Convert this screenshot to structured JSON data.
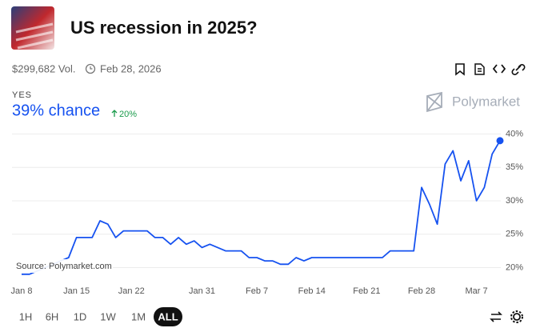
{
  "header": {
    "title": "US recession in 2025?",
    "volume": "$299,682 Vol.",
    "end_date": "Feb 28, 2026"
  },
  "outcome": {
    "label": "YES",
    "chance": "39% chance",
    "change": "20%"
  },
  "brand": "Polymarket",
  "chart_data": {
    "type": "line",
    "source": "Source: Polymarket.com",
    "categories": [
      "Jan 8",
      null,
      null,
      null,
      null,
      null,
      null,
      "Jan 15",
      null,
      null,
      null,
      null,
      null,
      null,
      "Jan 22",
      null,
      null,
      null,
      null,
      null,
      null,
      null,
      null,
      "Jan 31",
      null,
      null,
      null,
      null,
      null,
      null,
      "Feb 7",
      null,
      null,
      null,
      null,
      null,
      null,
      "Feb 14",
      null,
      null,
      null,
      null,
      null,
      null,
      "Feb 21",
      null,
      null,
      null,
      null,
      null,
      null,
      "Feb 28",
      null,
      null,
      null,
      null,
      null,
      null,
      "Mar 7",
      null,
      null,
      null
    ],
    "series": [
      {
        "name": "YES",
        "color": "#1652f0",
        "values": [
          19,
          19,
          19.5,
          20,
          20.5,
          21,
          21.5,
          24.5,
          24.5,
          24.5,
          27,
          26.5,
          24.5,
          25.5,
          25.5,
          25.5,
          25.5,
          24.5,
          24.5,
          23.5,
          24.5,
          23.5,
          24,
          23,
          23.5,
          23,
          22.5,
          22.5,
          22.5,
          21.5,
          21.5,
          21,
          21,
          20.5,
          20.5,
          21.5,
          21,
          21.5,
          21.5,
          21.5,
          21.5,
          21.5,
          21.5,
          21.5,
          21.5,
          21.5,
          21.5,
          22.5,
          22.5,
          22.5,
          22.5,
          32,
          29.5,
          26.5,
          35.5,
          37.5,
          33,
          36,
          30,
          32,
          37,
          39
        ]
      }
    ],
    "ylim": [
      18.5,
      41.5
    ],
    "yticks": [
      {
        "value": 20,
        "label": "20%"
      },
      {
        "value": 25,
        "label": "25%"
      },
      {
        "value": 30,
        "label": "30%"
      },
      {
        "value": 35,
        "label": "35%"
      },
      {
        "value": 40,
        "label": "40%"
      }
    ],
    "grid": true
  },
  "controls": {
    "ranges": [
      "1H",
      "6H",
      "1D",
      "1W",
      "1M",
      "ALL"
    ],
    "selected": "ALL"
  }
}
